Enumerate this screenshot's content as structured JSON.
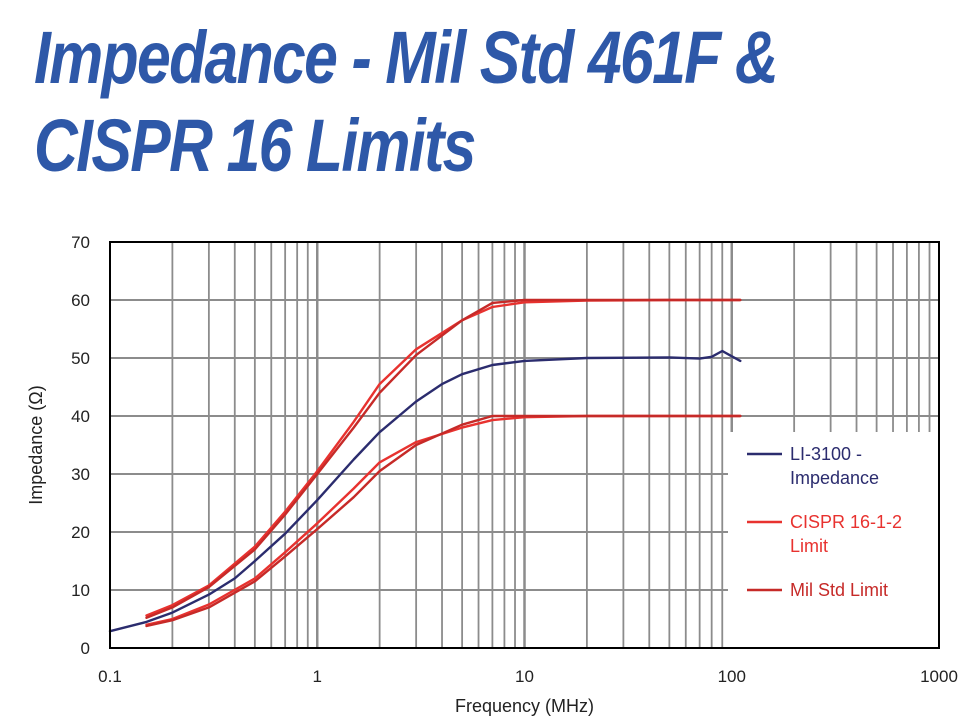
{
  "title": {
    "line1": "Impedance - Mil Std 461F &",
    "line2": "CISPR 16 Limits"
  },
  "chart_data": {
    "type": "line",
    "xlabel": "Frequency (MHz)",
    "ylabel": "Impedance (Ω)",
    "xscale": "log",
    "xlim": [
      0.1,
      1000
    ],
    "ylim": [
      0,
      70
    ],
    "xticks": [
      {
        "value": 0.1,
        "label": "0.1"
      },
      {
        "value": 1,
        "label": "1"
      },
      {
        "value": 10,
        "label": "10"
      },
      {
        "value": 100,
        "label": "100"
      },
      {
        "value": 1000,
        "label": "1000"
      }
    ],
    "yticks": [
      0,
      10,
      20,
      30,
      40,
      50,
      60,
      70
    ],
    "grid": true,
    "legend_position": "right",
    "series": [
      {
        "name": "LI-3100 - Impedance",
        "legend_lines": [
          "LI-3100 -",
          "Impedance"
        ],
        "color": "#2b2c6e",
        "points": [
          [
            0.1,
            2.9
          ],
          [
            0.15,
            4.5
          ],
          [
            0.2,
            6.1
          ],
          [
            0.3,
            9.2
          ],
          [
            0.4,
            12.0
          ],
          [
            0.5,
            15.0
          ],
          [
            0.7,
            19.7
          ],
          [
            1,
            25.5
          ],
          [
            1.5,
            32.5
          ],
          [
            2,
            37.2
          ],
          [
            3,
            42.5
          ],
          [
            4,
            45.5
          ],
          [
            5,
            47.2
          ],
          [
            7,
            48.8
          ],
          [
            10,
            49.5
          ],
          [
            20,
            50.0
          ],
          [
            50,
            50.1
          ],
          [
            70,
            49.9
          ],
          [
            80,
            50.2
          ],
          [
            90,
            51.2
          ],
          [
            100,
            50.3
          ],
          [
            110,
            49.5
          ]
        ]
      },
      {
        "name": "CISPR 16-1-2 Limit",
        "legend_lines": [
          "CISPR 16-1-2",
          "Limit"
        ],
        "color": "#e8322f",
        "points": [
          [
            0.15,
            5.6
          ],
          [
            0.2,
            7.4
          ],
          [
            0.3,
            10.8
          ],
          [
            0.5,
            17.5
          ],
          [
            0.7,
            23.5
          ],
          [
            1,
            30.5
          ],
          [
            1.5,
            39.0
          ],
          [
            2,
            45.5
          ],
          [
            3,
            51.5
          ],
          [
            5,
            56.5
          ],
          [
            7,
            58.8
          ],
          [
            10,
            59.6
          ],
          [
            20,
            59.9
          ],
          [
            50,
            60.0
          ],
          [
            110,
            60.0
          ]
        ]
      },
      {
        "name": "CISPR 16-1-2 Limit (lower)",
        "color": "#e8322f",
        "points": [
          [
            0.15,
            4.0
          ],
          [
            0.2,
            5.0
          ],
          [
            0.3,
            7.5
          ],
          [
            0.5,
            12.0
          ],
          [
            0.7,
            16.5
          ],
          [
            1,
            21.5
          ],
          [
            1.5,
            27.5
          ],
          [
            2,
            32.0
          ],
          [
            3,
            35.5
          ],
          [
            5,
            38.0
          ],
          [
            7,
            39.3
          ],
          [
            10,
            39.8
          ],
          [
            20,
            40.0
          ],
          [
            110,
            40.0
          ]
        ]
      },
      {
        "name": "Mil Std Limit",
        "legend_lines": [
          "Mil Std Limit"
        ],
        "color": "#c62a28",
        "points": [
          [
            0.15,
            5.2
          ],
          [
            0.2,
            7.0
          ],
          [
            0.3,
            10.5
          ],
          [
            0.5,
            17.0
          ],
          [
            0.7,
            23.0
          ],
          [
            1,
            30.0
          ],
          [
            1.5,
            38.0
          ],
          [
            2,
            44.0
          ],
          [
            3,
            50.5
          ],
          [
            5,
            56.5
          ],
          [
            7,
            59.5
          ],
          [
            10,
            60.0
          ],
          [
            20,
            60.0
          ],
          [
            110,
            60.0
          ]
        ]
      },
      {
        "name": "Mil Std Limit (lower)",
        "color": "#c62a28",
        "points": [
          [
            0.15,
            3.8
          ],
          [
            0.2,
            4.8
          ],
          [
            0.3,
            7.0
          ],
          [
            0.5,
            11.5
          ],
          [
            0.7,
            15.8
          ],
          [
            1,
            20.5
          ],
          [
            1.5,
            26.0
          ],
          [
            2,
            30.5
          ],
          [
            3,
            35.0
          ],
          [
            5,
            38.5
          ],
          [
            7,
            40.0
          ],
          [
            10,
            40.0
          ],
          [
            110,
            40.0
          ]
        ]
      }
    ]
  }
}
